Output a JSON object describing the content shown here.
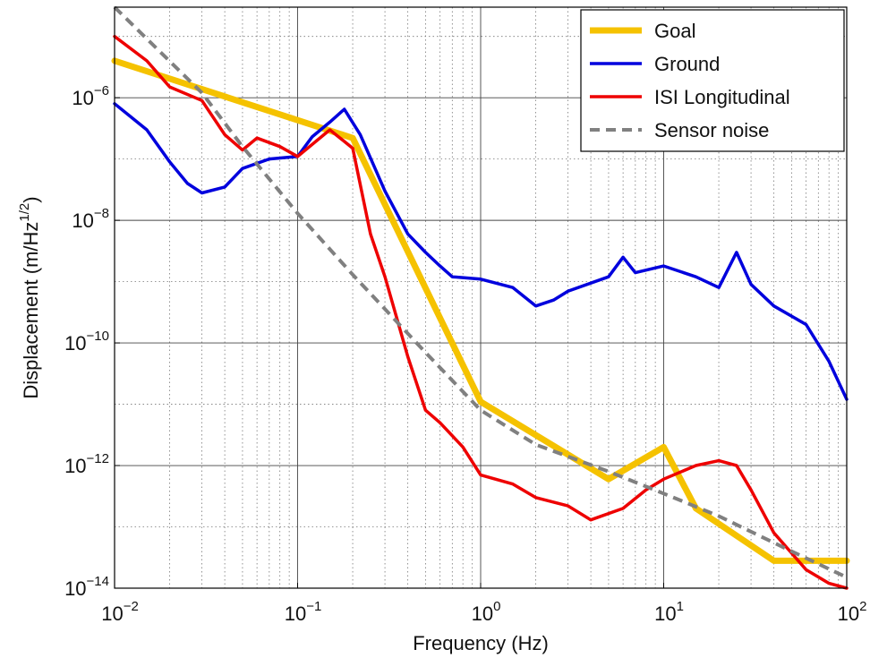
{
  "chart_data": {
    "type": "line",
    "xlabel": "Frequency (Hz)",
    "ylabel": "Displacement (m/Hz",
    "ylabel_sup": "1/2",
    "ylabel_close": ")",
    "xscale": "log",
    "yscale": "log",
    "xlim": [
      0.01,
      100
    ],
    "ylim": [
      1e-14,
      3e-05
    ],
    "grid": "major solid, minor dotted",
    "legend_position": "top-right",
    "x_ticks": [
      {
        "base": "10",
        "exp": "−2",
        "value": 0.01
      },
      {
        "base": "10",
        "exp": "−1",
        "value": 0.1
      },
      {
        "base": "10",
        "exp": "0",
        "value": 1
      },
      {
        "base": "10",
        "exp": "1",
        "value": 10
      },
      {
        "base": "10",
        "exp": "2",
        "value": 100
      }
    ],
    "y_ticks": [
      {
        "base": "10",
        "exp": "−14",
        "value": 1e-14
      },
      {
        "base": "10",
        "exp": "−12",
        "value": 1e-12
      },
      {
        "base": "10",
        "exp": "−10",
        "value": 1e-10
      },
      {
        "base": "10",
        "exp": "−8",
        "value": 1e-08
      },
      {
        "base": "10",
        "exp": "−6",
        "value": 1e-06
      }
    ],
    "series": [
      {
        "name": "Goal",
        "color": "#F5C200",
        "style": "solid-thick",
        "points": [
          [
            0.01,
            4e-06
          ],
          [
            0.2,
            2.2e-07
          ],
          [
            1.0,
            1.1e-11
          ],
          [
            5.0,
            6e-13
          ],
          [
            10.0,
            2e-12
          ],
          [
            15.0,
            2e-13
          ],
          [
            40.0,
            2.8e-14
          ],
          [
            100.0,
            2.8e-14
          ]
        ]
      },
      {
        "name": "Ground",
        "color": "#0000DD",
        "style": "solid",
        "points": [
          [
            0.01,
            8e-07
          ],
          [
            0.015,
            3e-07
          ],
          [
            0.02,
            9e-08
          ],
          [
            0.025,
            4e-08
          ],
          [
            0.03,
            2.8e-08
          ],
          [
            0.04,
            3.5e-08
          ],
          [
            0.05,
            7e-08
          ],
          [
            0.07,
            1e-07
          ],
          [
            0.1,
            1.1e-07
          ],
          [
            0.12,
            2.3e-07
          ],
          [
            0.15,
            4e-07
          ],
          [
            0.18,
            6.5e-07
          ],
          [
            0.22,
            2.5e-07
          ],
          [
            0.3,
            3e-08
          ],
          [
            0.4,
            6e-09
          ],
          [
            0.5,
            3e-09
          ],
          [
            0.6,
            1.8e-09
          ],
          [
            0.7,
            1.2e-09
          ],
          [
            1.0,
            1.1e-09
          ],
          [
            1.5,
            8e-10
          ],
          [
            2.0,
            4e-10
          ],
          [
            2.5,
            5e-10
          ],
          [
            3.0,
            7e-10
          ],
          [
            5.0,
            1.2e-09
          ],
          [
            6.0,
            2.5e-09
          ],
          [
            7.0,
            1.4e-09
          ],
          [
            10.0,
            1.8e-09
          ],
          [
            15.0,
            1.2e-09
          ],
          [
            20.0,
            8e-10
          ],
          [
            25.0,
            3e-09
          ],
          [
            30.0,
            9e-10
          ],
          [
            40.0,
            4e-10
          ],
          [
            60.0,
            2e-10
          ],
          [
            80.0,
            5e-11
          ],
          [
            100.0,
            1.2e-11
          ]
        ]
      },
      {
        "name": "ISI Longitudinal",
        "color": "#EE0000",
        "style": "solid",
        "points": [
          [
            0.01,
            1e-05
          ],
          [
            0.015,
            4e-06
          ],
          [
            0.02,
            1.5e-06
          ],
          [
            0.03,
            9e-07
          ],
          [
            0.04,
            2.5e-07
          ],
          [
            0.05,
            1.4e-07
          ],
          [
            0.06,
            2.2e-07
          ],
          [
            0.08,
            1.6e-07
          ],
          [
            0.1,
            1.1e-07
          ],
          [
            0.15,
            3e-07
          ],
          [
            0.2,
            1.5e-07
          ],
          [
            0.25,
            6e-09
          ],
          [
            0.3,
            1.2e-09
          ],
          [
            0.4,
            6e-11
          ],
          [
            0.5,
            8e-12
          ],
          [
            0.6,
            5e-12
          ],
          [
            0.8,
            2e-12
          ],
          [
            1.0,
            7e-13
          ],
          [
            1.5,
            5e-13
          ],
          [
            2.0,
            3e-13
          ],
          [
            3.0,
            2.2e-13
          ],
          [
            4.0,
            1.3e-13
          ],
          [
            6.0,
            2e-13
          ],
          [
            8.0,
            4e-13
          ],
          [
            10.0,
            6e-13
          ],
          [
            15.0,
            1e-12
          ],
          [
            20.0,
            1.2e-12
          ],
          [
            25.0,
            1e-12
          ],
          [
            30.0,
            4e-13
          ],
          [
            40.0,
            8e-14
          ],
          [
            60.0,
            2e-14
          ],
          [
            80.0,
            1.2e-14
          ],
          [
            100.0,
            1e-14
          ]
        ]
      },
      {
        "name": "Sensor noise",
        "color": "#808080",
        "style": "dashed",
        "points": [
          [
            0.01,
            3e-05
          ],
          [
            0.03,
            1.2e-06
          ],
          [
            0.05,
            1.6e-07
          ],
          [
            0.1,
            1.3e-08
          ],
          [
            0.2,
            1.3e-09
          ],
          [
            0.5,
            7e-11
          ],
          [
            1.0,
            8e-12
          ],
          [
            2.0,
            2.2e-12
          ],
          [
            5.0,
            8e-13
          ],
          [
            10.0,
            3.5e-13
          ],
          [
            20.0,
            1.5e-13
          ],
          [
            50.0,
            4e-14
          ],
          [
            100.0,
            1.5e-14
          ]
        ]
      }
    ]
  }
}
